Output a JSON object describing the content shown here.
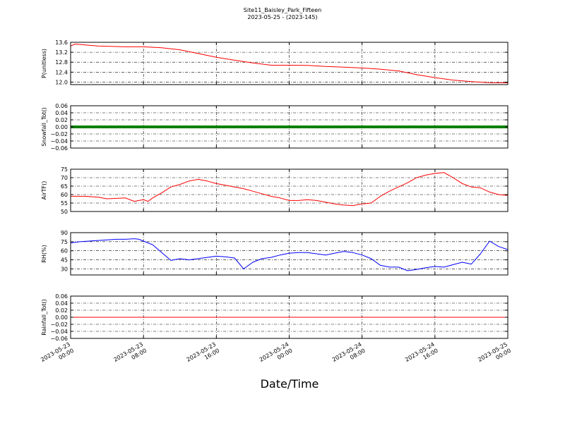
{
  "title": "Site11_Baisley_Park_Fifteen",
  "subtitle": "2023-05-25 - (2023-145)",
  "chart_data": {
    "type": "line",
    "xlabel": "Date/Time",
    "x_ticks": [
      {
        "day": 0,
        "hour": 0,
        "line1": "2023-05-23",
        "line2": "00:00"
      },
      {
        "day": 0,
        "hour": 8,
        "line1": "2023-05-23",
        "line2": "08:00"
      },
      {
        "day": 0,
        "hour": 16,
        "line1": "2023-05-23",
        "line2": "16:00"
      },
      {
        "day": 1,
        "hour": 0,
        "line1": "2023-05-24",
        "line2": "00:00"
      },
      {
        "day": 1,
        "hour": 8,
        "line1": "2023-05-24",
        "line2": "08:00"
      },
      {
        "day": 1,
        "hour": 16,
        "line1": "2023-05-24",
        "line2": "16:00"
      },
      {
        "day": 2,
        "hour": 0,
        "line1": "2023-05-25",
        "line2": "00:00"
      }
    ],
    "x_range_hours": [
      0,
      48
    ],
    "grid": true,
    "panels": [
      {
        "id": "p",
        "ylabel": "P(unitless)",
        "ylim": [
          11.9,
          13.6
        ],
        "yticks": [
          12.0,
          12.4,
          12.8,
          13.2,
          13.6
        ],
        "ytick_labels": [
          "12.0",
          "12.4",
          "12.8",
          "13.2",
          "13.6"
        ],
        "color": "#ff0000",
        "line_width": 1,
        "series": {
          "x": [
            0,
            0.5,
            3,
            6,
            8,
            10,
            12,
            14,
            16,
            18,
            20,
            22,
            24,
            26,
            28,
            30,
            32,
            34,
            36,
            38,
            40,
            42,
            44,
            46,
            48
          ],
          "y": [
            13.45,
            13.53,
            13.45,
            13.42,
            13.42,
            13.38,
            13.3,
            13.15,
            13.0,
            12.88,
            12.77,
            12.68,
            12.68,
            12.67,
            12.63,
            12.6,
            12.57,
            12.52,
            12.45,
            12.3,
            12.18,
            12.08,
            12.02,
            11.98,
            11.97
          ]
        }
      },
      {
        "id": "snow",
        "ylabel": "Snowfall_Tot()",
        "ylim": [
          -0.06,
          0.06
        ],
        "yticks": [
          -0.06,
          -0.04,
          -0.02,
          0.0,
          0.02,
          0.04,
          0.06
        ],
        "ytick_labels": [
          "−0.06",
          "−0.04",
          "−0.02",
          "0.00",
          "0.02",
          "0.04",
          "0.06"
        ],
        "color": "#008000",
        "line_width": 4,
        "series": {
          "x": [
            0,
            48
          ],
          "y": [
            0.0,
            0.0
          ]
        }
      },
      {
        "id": "airtf",
        "ylabel": "AirTF()",
        "ylim": [
          50,
          75
        ],
        "yticks": [
          50,
          55,
          60,
          65,
          70,
          75
        ],
        "ytick_labels": [
          "50",
          "55",
          "60",
          "65",
          "70",
          "75"
        ],
        "color": "#ff0000",
        "line_width": 1,
        "series": {
          "x": [
            0,
            1.5,
            3,
            4,
            6,
            7,
            7.5,
            8,
            8.5,
            9,
            10,
            11,
            12,
            13,
            14,
            15,
            16,
            17,
            18,
            19,
            20,
            21,
            22,
            23,
            24,
            25,
            26,
            27,
            28,
            29,
            30,
            31,
            32,
            33,
            34,
            35,
            36,
            37,
            38,
            39,
            40,
            41,
            42,
            43,
            44,
            45,
            46,
            47,
            48
          ],
          "y": [
            59,
            59,
            58.5,
            57.5,
            58,
            56,
            56.5,
            57,
            56,
            58,
            61,
            64.5,
            66,
            68,
            69,
            68,
            66.5,
            65.5,
            64.5,
            63.5,
            62,
            60.5,
            59,
            58,
            56.5,
            56.5,
            57,
            56.5,
            55.5,
            54.5,
            53.8,
            53.5,
            54.5,
            55,
            59,
            62,
            64.5,
            67,
            70,
            71.5,
            72.5,
            73,
            70,
            66.5,
            64.5,
            64,
            61.5,
            60,
            59.5
          ]
        }
      },
      {
        "id": "rh",
        "ylabel": "RH(%)",
        "ylim": [
          20,
          90
        ],
        "yticks": [
          30,
          45,
          60,
          75,
          90
        ],
        "ytick_labels": [
          "30",
          "45",
          "60",
          "75",
          "90"
        ],
        "color": "#0000ff",
        "line_width": 1,
        "series": {
          "x": [
            0,
            1,
            2,
            3,
            4,
            5,
            6,
            7,
            7.5,
            8,
            9,
            10,
            11,
            12,
            13,
            14,
            15,
            16,
            17,
            18,
            19,
            20,
            21,
            22,
            23,
            24,
            25,
            26,
            27,
            28,
            29,
            30,
            31,
            32,
            33,
            34,
            35,
            36,
            37,
            38,
            39,
            40,
            41,
            42,
            43,
            44,
            45,
            46,
            47,
            48
          ],
          "y": [
            73,
            75,
            76,
            77,
            78,
            79,
            79,
            80,
            79,
            76,
            70,
            57,
            44,
            47,
            45,
            47,
            49,
            51,
            50,
            48,
            30,
            41,
            47,
            49,
            53,
            56,
            57,
            57,
            55,
            53,
            56,
            59,
            57,
            53,
            47,
            36,
            33,
            33,
            27,
            29,
            32,
            34,
            33,
            37,
            41,
            38,
            55,
            76,
            67,
            62
          ]
        }
      },
      {
        "id": "rain",
        "ylabel": "Rainfall_Tot()",
        "ylim": [
          -0.06,
          0.06
        ],
        "yticks": [
          -0.06,
          -0.04,
          -0.02,
          0.0,
          0.02,
          0.04,
          0.06
        ],
        "ytick_labels": [
          "−0.06",
          "−0.04",
          "−0.02",
          "0.00",
          "0.02",
          "0.04",
          "0.06"
        ],
        "color": "#ff0000",
        "line_width": 1,
        "series": {
          "x": [
            0,
            48
          ],
          "y": [
            0.0,
            0.0
          ]
        }
      }
    ]
  }
}
